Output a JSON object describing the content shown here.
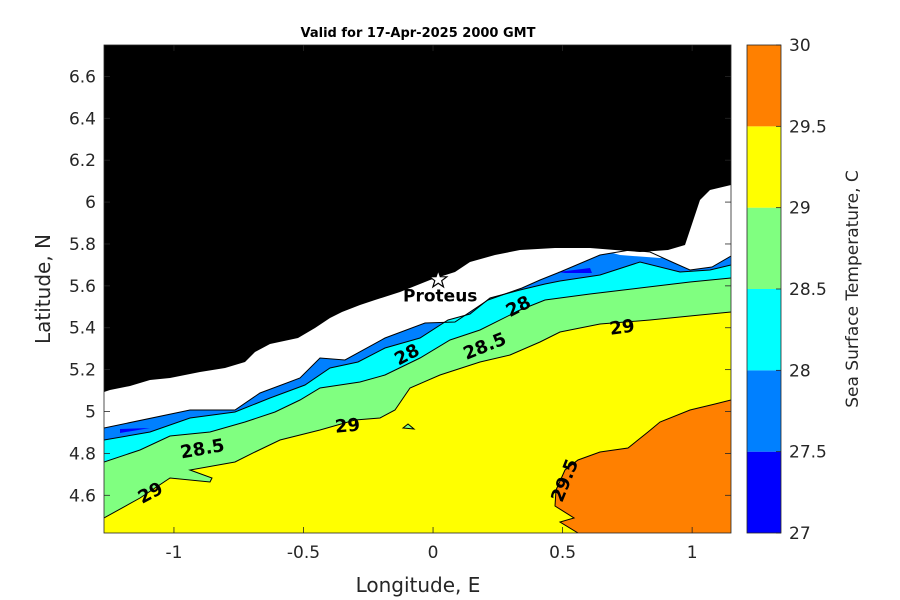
{
  "chart_data": {
    "type": "contour-map",
    "title": "Valid for 17-Apr-2025 2000 GMT",
    "xlabel": "Longitude, E",
    "ylabel": "Latitude, N",
    "xlim": [
      -1.27,
      1.15
    ],
    "ylim": [
      4.42,
      6.75
    ],
    "xticks": [
      -1,
      -0.5,
      0,
      0.5,
      1
    ],
    "xtick_labels": [
      "-1",
      "-0.5",
      "0",
      "0.5",
      "1"
    ],
    "yticks": [
      4.6,
      4.8,
      5.0,
      5.2,
      5.4,
      5.6,
      5.8,
      6.0,
      6.2,
      6.4,
      6.6
    ],
    "ytick_labels": [
      "4.6",
      "4.8",
      "5",
      "5.2",
      "5.4",
      "5.6",
      "5.8",
      "6",
      "6.2",
      "6.4",
      "6.6"
    ],
    "colorbar": {
      "label": "Sea Surface Temperature, C",
      "levels": [
        27,
        27.5,
        28,
        28.5,
        29,
        29.5,
        30
      ],
      "level_labels": [
        "27",
        "27.5",
        "28",
        "28.5",
        "29",
        "29.5",
        "30"
      ],
      "colors": [
        "#0000ff",
        "#0080ff",
        "#00ffff",
        "#80ff80",
        "#ffff00",
        "#ff8000"
      ]
    },
    "land_color": "#000000",
    "nodata_color": "#ffffff",
    "contour_labels": [
      {
        "text": "29",
        "lon": -1.09,
        "lat": 4.61,
        "angle": -28
      },
      {
        "text": "28.5",
        "lon": -0.89,
        "lat": 4.82,
        "angle": -10
      },
      {
        "text": "29",
        "lon": -0.33,
        "lat": 4.93,
        "angle": -5
      },
      {
        "text": "28",
        "lon": -0.1,
        "lat": 5.27,
        "angle": -28
      },
      {
        "text": "28.5",
        "lon": 0.2,
        "lat": 5.31,
        "angle": -22
      },
      {
        "text": "28",
        "lon": 0.33,
        "lat": 5.5,
        "angle": -27
      },
      {
        "text": "29",
        "lon": 0.73,
        "lat": 5.4,
        "angle": -8
      },
      {
        "text": "29.5",
        "lon": 0.51,
        "lat": 4.67,
        "angle": -68
      }
    ],
    "station": {
      "name": "Proteus",
      "lon": 0.02,
      "lat": 5.63
    }
  }
}
